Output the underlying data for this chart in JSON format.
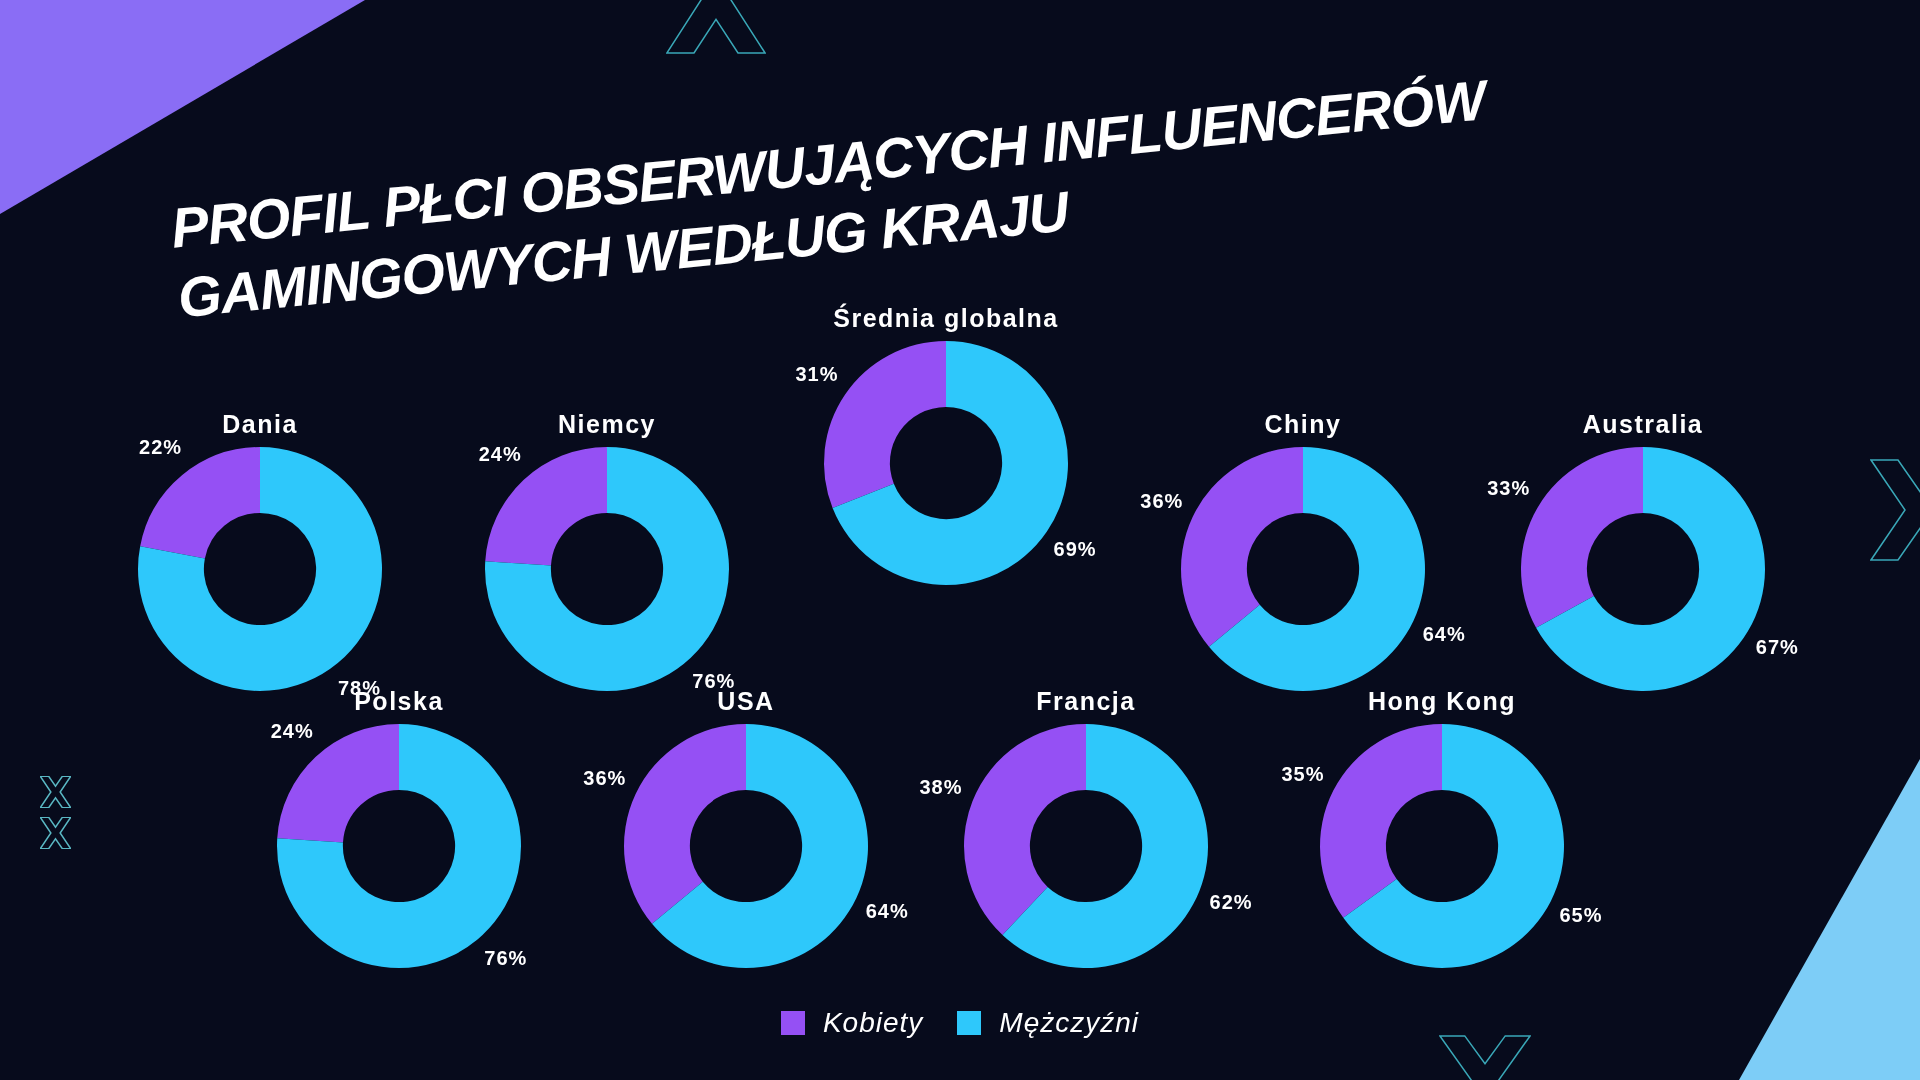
{
  "chart_data": [
    {
      "type": "other",
      "title": "PROFIL PŁCI OBSERWUJĄCYCH INFLUENCERÓW GAMINGOWYCH WEDŁUG KRAJU"
    },
    {
      "type": "donut",
      "title": "Średnia globalna",
      "categories": [
        "Kobiety",
        "Mężczyźni"
      ],
      "values": [
        31,
        69
      ],
      "colors": [
        "#9550f4",
        "#2ec8fb"
      ],
      "value_labels": [
        "31%",
        "69%"
      ],
      "legend": "bottom"
    },
    {
      "type": "donut",
      "title": "Dania",
      "categories": [
        null,
        null
      ],
      "values": [
        22,
        78
      ],
      "colors": [
        "#9550f4",
        "#2ec8fb"
      ],
      "value_labels": [
        "22%",
        "78%"
      ]
    },
    {
      "type": "donut",
      "title": "Niemcy",
      "categories": [
        null,
        null
      ],
      "values": [
        24,
        76
      ],
      "colors": [
        "#9550f4",
        "#2ec8fb"
      ],
      "value_labels": [
        "24%",
        "76%"
      ]
    },
    {
      "type": "donut",
      "title": "Chiny",
      "categories": [
        null,
        null
      ],
      "values": [
        36,
        64
      ],
      "colors": [
        "#9550f4",
        "#2ec8fb"
      ],
      "value_labels": [
        "36%",
        "64%"
      ]
    },
    {
      "type": "donut",
      "title": "Australia",
      "categories": [
        null,
        null
      ],
      "values": [
        33,
        67
      ],
      "colors": [
        "#9550f4",
        "#2ec8fb"
      ],
      "value_labels": [
        "33%",
        "67%"
      ]
    },
    {
      "type": "donut",
      "title": "Polska",
      "categories": [
        null,
        null
      ],
      "values": [
        24,
        76
      ],
      "colors": [
        "#9550f4",
        "#2ec8fb"
      ],
      "value_labels": [
        "24%",
        "76%"
      ]
    },
    {
      "type": "donut",
      "title": "USA",
      "categories": [
        null,
        null
      ],
      "values": [
        36,
        64
      ],
      "colors": [
        "#9550f4",
        "#2ec8fb"
      ],
      "value_labels": [
        "36%",
        "64%"
      ]
    },
    {
      "type": "donut",
      "title": "Francja",
      "categories": [
        null,
        null
      ],
      "values": [
        38,
        62
      ],
      "colors": [
        "#9550f4",
        "#2ec8fb"
      ],
      "value_labels": [
        "38%",
        "62%"
      ]
    },
    {
      "type": "donut",
      "title": "Hong Kong",
      "categories": [
        null,
        null
      ],
      "values": [
        35,
        65
      ],
      "colors": [
        "#9550f4",
        "#2ec8fb"
      ],
      "value_labels": [
        "35%",
        "65%"
      ]
    }
  ]
}
